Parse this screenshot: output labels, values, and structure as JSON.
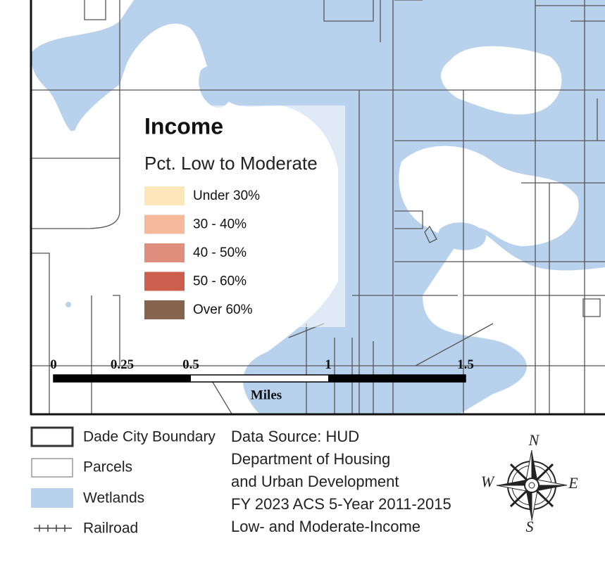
{
  "income_legend": {
    "title": "Income",
    "subtitle": "Pct. Low to Moderate",
    "items": [
      {
        "label": "Under 30%",
        "color": "#fde6b8"
      },
      {
        "label": "30 - 40%",
        "color": "#f6b99c"
      },
      {
        "label": "40 - 50%",
        "color": "#df8d7c"
      },
      {
        "label": "50 - 60%",
        "color": "#cc5f4e"
      },
      {
        "label": "Over 60%",
        "color": "#86634c"
      }
    ]
  },
  "scale_bar": {
    "ticks": [
      0,
      0.25,
      0.5,
      1,
      1.5
    ],
    "unit": "Miles"
  },
  "map_legend": {
    "items": [
      {
        "label": "Dade City Boundary"
      },
      {
        "label": "Parcels"
      },
      {
        "label": "Wetlands"
      },
      {
        "label": "Railroad"
      }
    ]
  },
  "data_source": {
    "lines": [
      "Data Source: HUD",
      "Department of Housing",
      "and Urban Development",
      "FY 2023 ACS 5-Year 2011-2015",
      "Low- and Moderate-Income"
    ]
  },
  "compass": {
    "n": "N",
    "e": "E",
    "s": "S",
    "w": "W"
  }
}
